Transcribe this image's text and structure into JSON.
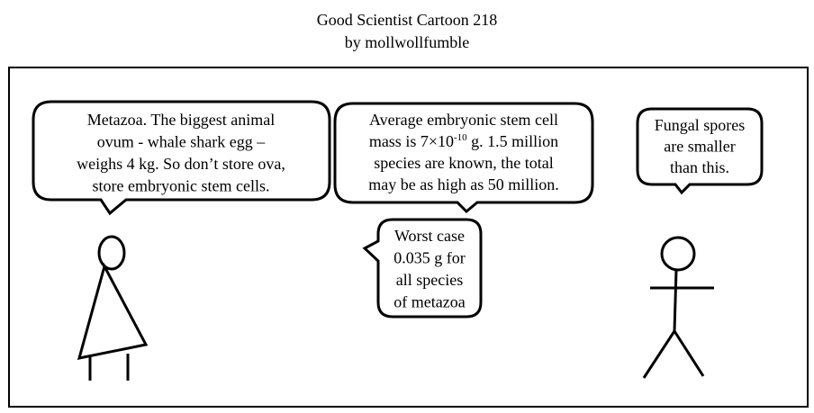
{
  "header": {
    "title": "Good Scientist Cartoon 218",
    "byline": "by mollwollfumble"
  },
  "bubbles": [
    {
      "lines": [
        "Metazoa. The biggest animal",
        "ovum - whale shark egg –",
        "weighs 4 kg. So don’t store ova,",
        "store embryonic stem cells."
      ]
    },
    {
      "lines": [
        "Average embryonic stem cell",
        {
          "before": "mass is 7×10",
          "sup": "-10",
          "after": " g. 1.5 million"
        },
        "species are known, the total",
        "may be as high as 50 million."
      ]
    },
    {
      "lines": [
        "Worst case",
        "0.035 g for",
        "all species",
        "of metazoa"
      ]
    },
    {
      "lines": [
        "Fungal spores",
        "are smaller",
        "than this."
      ]
    }
  ]
}
